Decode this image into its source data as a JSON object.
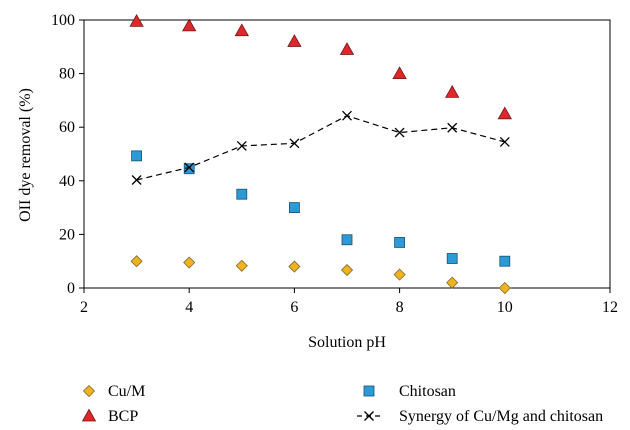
{
  "chart_data": {
    "type": "scatter",
    "xlabel": "Solution pH",
    "ylabel": "OII dye removal (%)",
    "xlim": [
      2,
      12
    ],
    "ylim": [
      0,
      100
    ],
    "xticks": [
      2,
      4,
      6,
      8,
      10,
      12
    ],
    "yticks": [
      0,
      20,
      40,
      60,
      80,
      100
    ],
    "grid": false,
    "legend_position": "bottom",
    "series": [
      {
        "name": "Cu/M",
        "marker": "diamond",
        "color": "#f2b21c",
        "x": [
          3,
          4,
          5,
          6,
          7,
          8,
          9,
          10
        ],
        "y": [
          10,
          9.5,
          8.3,
          8,
          6.7,
          5,
          2,
          0
        ]
      },
      {
        "name": "BCP",
        "marker": "triangle",
        "color": "#e0262b",
        "x": [
          3,
          4,
          5,
          6,
          7,
          8,
          9,
          10
        ],
        "y": [
          99.5,
          97.8,
          96,
          92,
          89,
          80,
          73,
          65
        ]
      },
      {
        "name": "Chitosan",
        "marker": "square",
        "color": "#2a9bd6",
        "x": [
          3,
          4,
          5,
          6,
          7,
          8,
          9,
          10
        ],
        "y": [
          49.3,
          44.5,
          35,
          30,
          18,
          17,
          11,
          10
        ]
      },
      {
        "name": "Synergy of Cu/Mg and chitosan",
        "marker": "x",
        "line": "dashed",
        "color": "#000000",
        "x": [
          3,
          4,
          5,
          6,
          7,
          8,
          9,
          10
        ],
        "y": [
          40.3,
          45,
          53,
          54,
          64.3,
          58,
          59.8,
          54.5
        ]
      }
    ]
  }
}
